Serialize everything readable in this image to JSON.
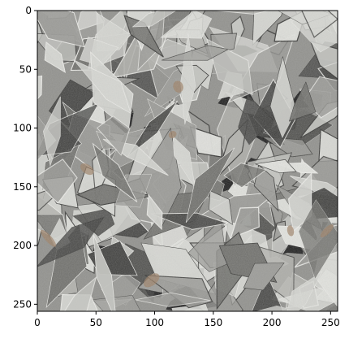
{
  "figure": {
    "x_ticks": [
      "0",
      "50",
      "100",
      "150",
      "200",
      "250"
    ],
    "y_ticks": [
      "0",
      "50",
      "100",
      "150",
      "200",
      "250"
    ],
    "image_description": "grayscale close-up texture of crumpled, shredded metallic foil or paper flakes with a few brownish patches"
  },
  "colors": {
    "frame": "#000000",
    "background": "#ffffff",
    "foil_light": "#d9dad5",
    "foil_mid": "#9a9a96",
    "foil_dark": "#3c3c3a",
    "foil_shadow": "#1a1a1a",
    "brown_accent": "#9b7c60"
  },
  "axes": {
    "x_range": [
      0,
      256
    ],
    "y_range": [
      0,
      256
    ],
    "y_direction": "top-to-bottom"
  }
}
